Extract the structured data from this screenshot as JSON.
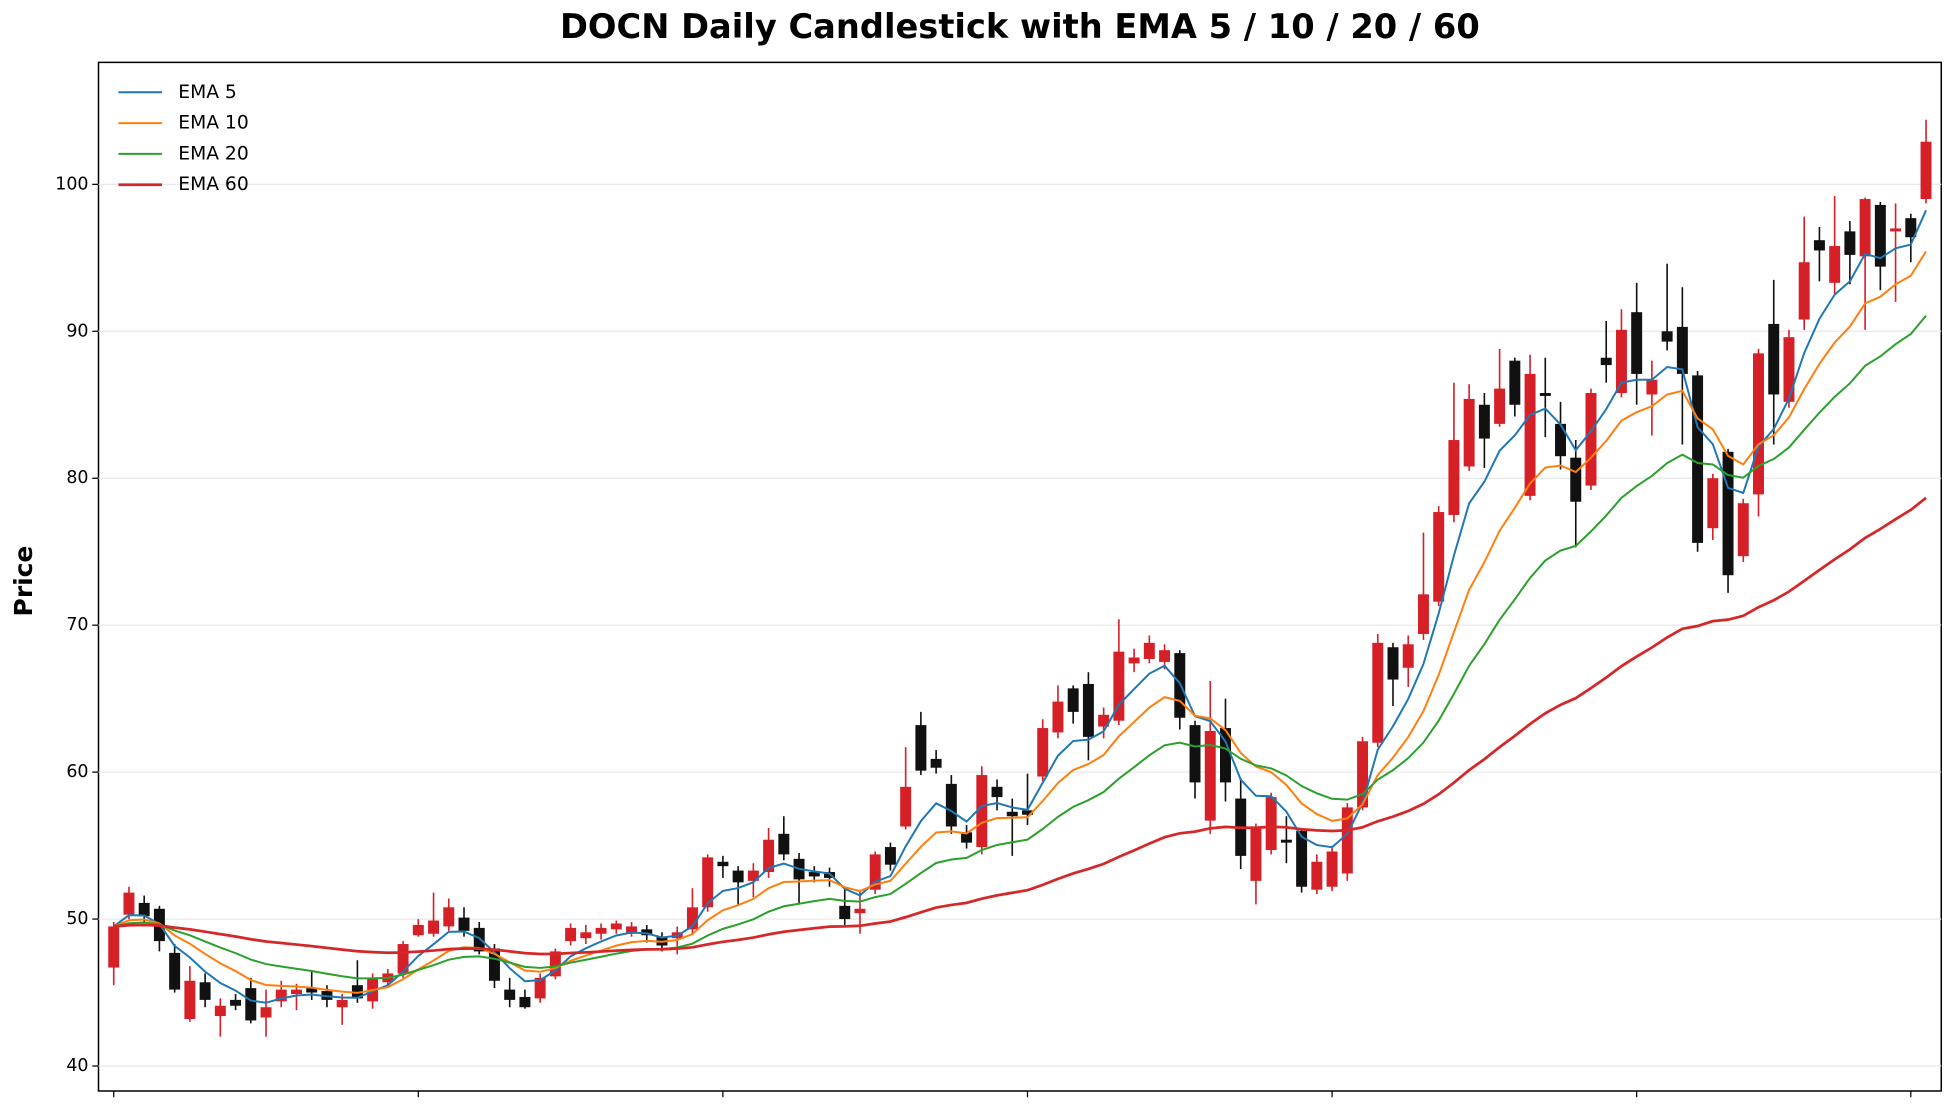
{
  "chart_data": {
    "type": "candlestick",
    "title": "DOCN Daily Candlestick with EMA 5 / 10 / 20 / 60",
    "ylabel": "Price",
    "ylim": [
      38.3,
      108.3
    ],
    "yticks": [
      40,
      50,
      60,
      70,
      80,
      90,
      100
    ],
    "xlim": [
      -1,
      120
    ],
    "xticks": [
      0,
      20,
      40,
      60,
      80,
      100,
      118
    ],
    "grid": true,
    "legend": "upper left",
    "up_color": "#d62028",
    "down_color": "#111111",
    "open": [
      46.7,
      50.3,
      51.1,
      50.7,
      47.7,
      43.2,
      45.7,
      43.4,
      44.5,
      45.3,
      43.3,
      44.4,
      44.9,
      45.3,
      45.1,
      44.0,
      45.5,
      44.4,
      45.7,
      46.3,
      48.9,
      49.0,
      49.5,
      50.1,
      49.4,
      48.0,
      45.2,
      44.7,
      44.6,
      46.1,
      48.5,
      48.7,
      49.0,
      49.3,
      49.0,
      49.3,
      48.8,
      48.7,
      49.3,
      50.8,
      53.9,
      53.3,
      52.6,
      53.2,
      55.8,
      54.1,
      53.2,
      53.2,
      50.9,
      50.4,
      52.0,
      54.9,
      56.3,
      63.2,
      60.9,
      59.2,
      55.9,
      54.9,
      59.0,
      57.3,
      57.4,
      59.7,
      62.7,
      65.7,
      66.0,
      63.1,
      63.5,
      67.4,
      67.7,
      67.5,
      68.1,
      63.2,
      56.7,
      63.0,
      58.2,
      52.6,
      54.7,
      55.4,
      56.0,
      52.0,
      52.2,
      53.1,
      57.6,
      62.0,
      68.5,
      67.1,
      69.4,
      71.6,
      77.5,
      80.8,
      85.0,
      83.7,
      88.0,
      78.8,
      85.8,
      83.7,
      81.4,
      79.5,
      88.2,
      85.8,
      91.3,
      85.7,
      90.0,
      90.3,
      87.0,
      76.6,
      81.8,
      74.7,
      78.9,
      90.5,
      85.2,
      90.8,
      96.2,
      93.3,
      96.8,
      95.1,
      98.6,
      96.8,
      97.7,
      99.0
    ],
    "high": [
      49.8,
      52.2,
      51.6,
      50.9,
      48.3,
      46.8,
      46.3,
      44.6,
      44.9,
      46.0,
      45.2,
      45.8,
      45.6,
      46.5,
      45.5,
      44.9,
      47.2,
      46.3,
      46.6,
      48.5,
      50.0,
      51.8,
      51.4,
      50.8,
      49.8,
      48.3,
      46.0,
      45.2,
      46.3,
      48.0,
      49.7,
      49.6,
      49.7,
      49.9,
      49.8,
      49.6,
      49.1,
      49.5,
      52.1,
      54.4,
      54.3,
      53.6,
      53.8,
      56.2,
      57.0,
      54.5,
      53.6,
      53.5,
      52.1,
      52.0,
      54.6,
      55.2,
      61.7,
      64.1,
      61.5,
      59.8,
      56.4,
      60.4,
      59.5,
      58.2,
      59.9,
      63.6,
      65.9,
      65.9,
      66.8,
      64.4,
      70.4,
      68.4,
      69.3,
      68.7,
      68.3,
      63.5,
      66.2,
      65.0,
      59.6,
      56.5,
      58.6,
      57.0,
      56.2,
      54.4,
      55.0,
      57.9,
      62.4,
      69.4,
      68.8,
      69.3,
      76.3,
      78.1,
      86.5,
      86.4,
      85.8,
      88.8,
      88.2,
      88.4,
      88.2,
      85.2,
      82.6,
      86.1,
      90.7,
      91.5,
      93.3,
      88.0,
      94.6,
      93.0,
      87.3,
      80.3,
      82.0,
      78.6,
      88.8,
      93.5,
      90.1,
      97.8,
      97.1,
      99.2,
      97.5,
      99.1,
      98.8,
      98.7,
      98.0,
      104.4
    ],
    "low": [
      45.5,
      50.0,
      49.8,
      47.8,
      45.0,
      43.0,
      44.0,
      42.0,
      43.8,
      42.9,
      42.0,
      44.0,
      43.8,
      44.5,
      44.0,
      42.8,
      44.3,
      43.9,
      45.4,
      46.0,
      48.8,
      48.8,
      49.2,
      48.8,
      47.6,
      45.3,
      44.0,
      43.9,
      44.3,
      45.9,
      48.2,
      48.3,
      48.6,
      49.0,
      48.8,
      48.4,
      47.8,
      47.6,
      48.9,
      50.5,
      52.8,
      50.9,
      51.5,
      52.8,
      54.0,
      51.0,
      52.5,
      52.2,
      49.6,
      49.0,
      51.7,
      53.3,
      56.1,
      59.8,
      59.9,
      55.8,
      54.8,
      54.4,
      57.4,
      54.3,
      56.4,
      59.4,
      62.3,
      63.3,
      60.8,
      62.3,
      63.2,
      66.8,
      67.4,
      67.0,
      62.9,
      58.2,
      55.8,
      58.0,
      53.4,
      51.0,
      54.4,
      53.8,
      51.8,
      51.7,
      51.9,
      52.6,
      57.4,
      61.7,
      64.5,
      65.8,
      69.0,
      71.3,
      77.0,
      80.5,
      80.7,
      83.5,
      84.2,
      78.5,
      82.8,
      80.6,
      75.3,
      79.2,
      86.5,
      85.5,
      85.0,
      82.9,
      88.7,
      82.3,
      75.0,
      75.8,
      72.2,
      74.3,
      77.4,
      82.3,
      84.8,
      90.1,
      93.4,
      92.5,
      93.2,
      90.1,
      92.8,
      92.0,
      94.7,
      98.7
    ],
    "close": [
      49.5,
      51.8,
      50.2,
      48.5,
      45.2,
      45.8,
      44.5,
      44.1,
      44.1,
      43.1,
      44.0,
      45.2,
      45.2,
      45.0,
      44.5,
      44.5,
      44.6,
      46.0,
      46.3,
      48.3,
      49.6,
      49.9,
      50.8,
      49.2,
      47.8,
      45.8,
      44.5,
      44.0,
      46.0,
      47.8,
      49.4,
      49.1,
      49.4,
      49.7,
      49.5,
      48.9,
      48.2,
      49.1,
      50.8,
      54.2,
      53.6,
      52.5,
      53.3,
      55.4,
      54.4,
      52.7,
      52.9,
      52.8,
      50.0,
      50.7,
      54.4,
      53.7,
      59.0,
      60.1,
      60.3,
      56.3,
      55.2,
      59.8,
      58.3,
      57.0,
      57.1,
      63.0,
      64.8,
      64.1,
      62.4,
      63.9,
      68.2,
      67.8,
      68.8,
      68.3,
      63.7,
      59.3,
      62.8,
      59.3,
      54.3,
      56.2,
      58.3,
      55.2,
      52.2,
      53.9,
      54.6,
      57.6,
      62.1,
      68.8,
      66.3,
      68.7,
      72.1,
      77.7,
      82.6,
      85.4,
      82.7,
      86.1,
      85.0,
      87.1,
      85.6,
      81.5,
      78.4,
      85.8,
      87.7,
      90.1,
      87.1,
      86.7,
      89.3,
      87.1,
      75.6,
      80.0,
      73.4,
      78.3,
      88.5,
      85.7,
      89.6,
      94.7,
      95.5,
      95.8,
      95.2,
      99.0,
      94.4,
      97.0,
      96.4,
      102.9
    ],
    "ema": [
      {
        "name": "EMA 5",
        "color": "#1f77b4",
        "span": 5
      },
      {
        "name": "EMA 10",
        "color": "#ff7f0e",
        "span": 10
      },
      {
        "name": "EMA 20",
        "color": "#2ca02c",
        "span": 20
      },
      {
        "name": "EMA 60",
        "color": "#d62728",
        "span": 60
      }
    ]
  }
}
